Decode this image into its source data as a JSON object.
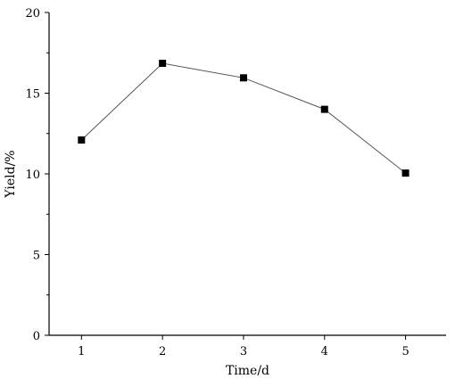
{
  "chart_data": {
    "type": "line",
    "title": "",
    "xlabel": "Time/d",
    "ylabel": "Yield/%",
    "xlim": [
      0.6,
      5.5
    ],
    "ylim": [
      0,
      20
    ],
    "x_ticks": [
      1,
      2,
      3,
      4,
      5
    ],
    "y_ticks": [
      0,
      5,
      10,
      15,
      20
    ],
    "grid": false,
    "legend": "none",
    "series": [
      {
        "x": [
          1,
          2,
          3,
          4,
          5
        ],
        "values": [
          12.1,
          16.85,
          15.95,
          14.0,
          10.05
        ],
        "marker": "square",
        "color": "#000000",
        "line_color": "#555555"
      }
    ]
  }
}
